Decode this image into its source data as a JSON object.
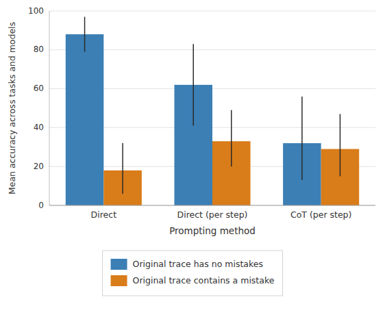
{
  "chart_data": {
    "type": "bar",
    "x_label": "Prompting method",
    "y_label": "Mean accuracy across tasks and models",
    "categories": [
      "Direct",
      "Direct (per step)",
      "CoT (per step)"
    ],
    "series": [
      {
        "name": "Original trace has no mistakes",
        "color": "#3b7fb5",
        "values": [
          88,
          62,
          32
        ],
        "errors_lower": [
          79,
          41,
          13
        ],
        "errors_upper": [
          97,
          83,
          56
        ]
      },
      {
        "name": "Original trace contains a mistake",
        "color": "#d97c1a",
        "values": [
          18,
          33,
          29
        ],
        "errors_lower": [
          6,
          20,
          15
        ],
        "errors_upper": [
          32,
          49,
          47
        ]
      }
    ],
    "ylim": [
      0,
      100
    ],
    "yticks": [
      0,
      20,
      40,
      60,
      80,
      100
    ],
    "grid": true,
    "legend": "bottom"
  }
}
